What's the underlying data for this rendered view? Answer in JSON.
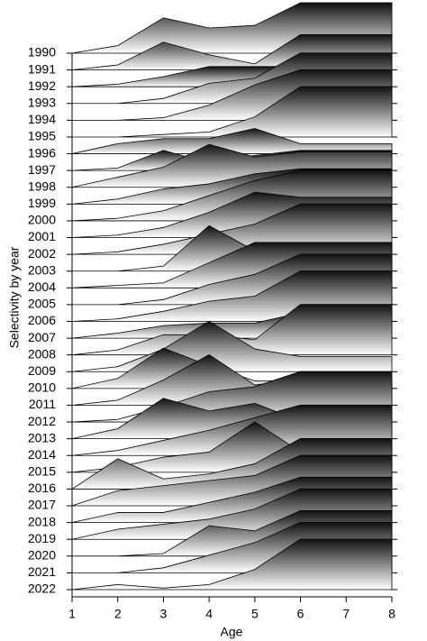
{
  "chart_data": {
    "type": "ridgeline",
    "y_label": "Selectivity by year",
    "x_label": "Age",
    "x": [
      1,
      2,
      3,
      4,
      5,
      6,
      7,
      8
    ],
    "xlim": [
      1,
      8
    ],
    "xticks": [
      1,
      2,
      3,
      4,
      5,
      6,
      7,
      8
    ],
    "rows": [
      {
        "name": "1990",
        "values": [
          0,
          0.15,
          0.7,
          0.5,
          0.55,
          1,
          1,
          1
        ]
      },
      {
        "name": "1991",
        "values": [
          0,
          0.1,
          0.55,
          0.3,
          0.12,
          0.7,
          0.7,
          0.7
        ]
      },
      {
        "name": "1992",
        "values": [
          0,
          0.05,
          0.2,
          0.4,
          0.4,
          0.4,
          0.4,
          0.4
        ]
      },
      {
        "name": "1993",
        "values": [
          0,
          0,
          0.1,
          0.4,
          0.5,
          1,
          1,
          1
        ]
      },
      {
        "name": "1994",
        "values": [
          0,
          0,
          0.05,
          0.3,
          0.7,
          1,
          1,
          1
        ]
      },
      {
        "name": "1995",
        "values": [
          0,
          0,
          0.05,
          0.1,
          0.4,
          1,
          1,
          1
        ]
      },
      {
        "name": "1996",
        "values": [
          0,
          0.2,
          0.3,
          0.3,
          0.5,
          0.2,
          0.2,
          0.2
        ]
      },
      {
        "name": "1997",
        "values": [
          0,
          0.05,
          0.4,
          0.15,
          0.3,
          0.4,
          0.4,
          0.4
        ]
      },
      {
        "name": "1998",
        "values": [
          0,
          0.2,
          0.4,
          0.85,
          0.6,
          0.7,
          0.7,
          0.7
        ]
      },
      {
        "name": "1999",
        "values": [
          0,
          0.1,
          0.3,
          0.4,
          0.6,
          0.7,
          0.7,
          0.7
        ]
      },
      {
        "name": "2000",
        "values": [
          0,
          0.05,
          0.2,
          0.5,
          0.8,
          1,
          1,
          1
        ]
      },
      {
        "name": "2001",
        "values": [
          0,
          0.05,
          0.2,
          0.5,
          0.9,
          0.8,
          0.8,
          0.8
        ]
      },
      {
        "name": "2002",
        "values": [
          0,
          0.05,
          0.2,
          0.4,
          0.6,
          1,
          1,
          1
        ]
      },
      {
        "name": "2003",
        "values": [
          0,
          0,
          0.1,
          0.9,
          0.4,
          0.4,
          0.4,
          0.4
        ]
      },
      {
        "name": "2004",
        "values": [
          0,
          0.05,
          0.1,
          0.5,
          0.9,
          0.9,
          0.9,
          0.9
        ]
      },
      {
        "name": "2005",
        "values": [
          0,
          0,
          0.1,
          0.4,
          0.6,
          1,
          1,
          1
        ]
      },
      {
        "name": "2006",
        "values": [
          0,
          0.05,
          0.2,
          0.4,
          0.5,
          1,
          1,
          1
        ]
      },
      {
        "name": "2007",
        "values": [
          0,
          0.1,
          0.25,
          0.3,
          0.3,
          0.5,
          0.5,
          0.5
        ]
      },
      {
        "name": "2008",
        "values": [
          0,
          0.1,
          0.4,
          0.4,
          0.3,
          1,
          1,
          1
        ]
      },
      {
        "name": "2009",
        "values": [
          0,
          0.1,
          0.45,
          1,
          0.45,
          0.3,
          0.3,
          0.3
        ]
      },
      {
        "name": "2010",
        "values": [
          0,
          0.2,
          0.8,
          0.45,
          0.15,
          0.15,
          0.15,
          0.15
        ]
      },
      {
        "name": "2011",
        "values": [
          0,
          0.1,
          0.5,
          1,
          0.4,
          0.5,
          0.5,
          0.5
        ]
      },
      {
        "name": "2012",
        "values": [
          0,
          0.05,
          0.3,
          0.6,
          0.7,
          1,
          1,
          1
        ]
      },
      {
        "name": "2013",
        "values": [
          0,
          0.2,
          0.8,
          0.55,
          0.7,
          0.35,
          0.35,
          0.35
        ]
      },
      {
        "name": "2014",
        "values": [
          0,
          0.1,
          0.3,
          0.5,
          0.75,
          1,
          1,
          1
        ]
      },
      {
        "name": "2015",
        "values": [
          0,
          0.1,
          0.3,
          0.4,
          1,
          0.4,
          0.4,
          0.4
        ]
      },
      {
        "name": "2016",
        "values": [
          0,
          0.6,
          0.2,
          0.3,
          0.5,
          1,
          1,
          1
        ]
      },
      {
        "name": "2017",
        "values": [
          0,
          0.3,
          0.4,
          0.5,
          0.6,
          1,
          1,
          1
        ]
      },
      {
        "name": "2018",
        "values": [
          0,
          0.2,
          0.2,
          0.4,
          0.6,
          0.9,
          0.9,
          0.9
        ]
      },
      {
        "name": "2019",
        "values": [
          0,
          0.2,
          0.3,
          0.4,
          0.6,
          1,
          1,
          1
        ]
      },
      {
        "name": "2020",
        "values": [
          0,
          0,
          0.05,
          0.6,
          0.5,
          0.9,
          0.9,
          0.9
        ]
      },
      {
        "name": "2021",
        "values": [
          0,
          0,
          0.1,
          0.35,
          0.6,
          1,
          1,
          1
        ]
      },
      {
        "name": "2022",
        "values": [
          0,
          0.1,
          0.03,
          0.1,
          0.4,
          1,
          1,
          1
        ]
      }
    ]
  }
}
